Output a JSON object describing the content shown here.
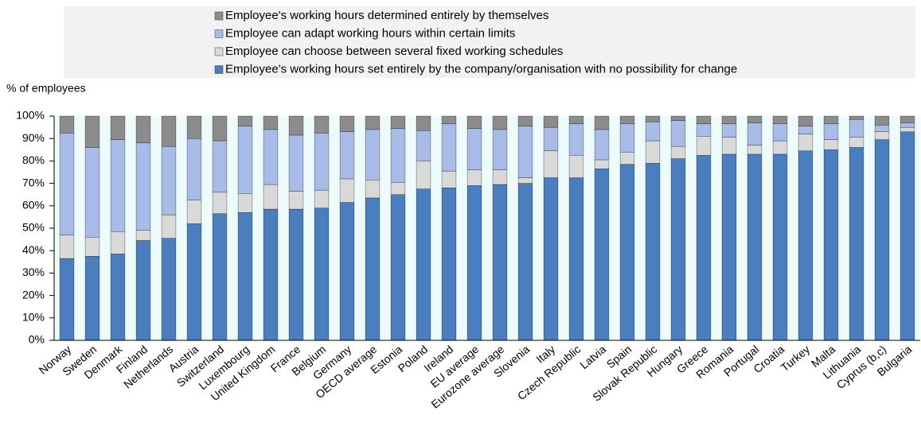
{
  "chart_data": {
    "type": "stacked_bar",
    "y_label": "% of employees",
    "categories": [
      "Norway",
      "Sweden",
      "Denmark",
      "Finland",
      "Netherlands",
      "Austria",
      "Switzerland",
      "Luxembourg",
      "United Kingdom",
      "France",
      "Belgium",
      "Germany",
      "OECD average",
      "Estonia",
      "Poland",
      "Ireland",
      "EU average",
      "Eurozone average",
      "Slovenia",
      "Italy",
      "Czech Republic",
      "Latvia",
      "Spain",
      "Slovak Republic",
      "Hungary",
      "Greece",
      "Romania",
      "Portugal",
      "Croatia",
      "Turkey",
      "Malta",
      "Lithuania",
      "Cyprus (b,c)",
      "Bulgaria"
    ],
    "series": [
      {
        "name": "Employee's working hours set entirely by the company/organisation with no possibility for change",
        "color": "#4a7ebf",
        "values": [
          36.5,
          37.5,
          38.5,
          44.5,
          45.5,
          52,
          56.5,
          57,
          58.5,
          58.5,
          59,
          61.5,
          63.5,
          65,
          67.5,
          68,
          69,
          69.5,
          70,
          72.5,
          72.5,
          76.5,
          78.5,
          79,
          81,
          82.5,
          83,
          83,
          83,
          84.5,
          85,
          86,
          89.5,
          93
        ]
      },
      {
        "name": "Employee can choose between several fixed working schedules",
        "color": "#d9d9d9",
        "values": [
          10.5,
          8.5,
          10,
          4.5,
          10.5,
          10.5,
          9.5,
          8.5,
          11,
          8,
          8,
          10.5,
          8,
          5.5,
          12.5,
          7.5,
          7,
          6.5,
          2.5,
          12,
          10,
          4,
          5.5,
          10,
          5.5,
          8.5,
          7.5,
          4,
          6,
          7.5,
          4.5,
          4.5,
          3.5,
          2
        ]
      },
      {
        "name": "Employee can adapt working hours within certain limits",
        "color": "#a9bce8",
        "values": [
          45.5,
          40,
          41,
          39,
          30.5,
          27.5,
          23,
          30,
          24.5,
          25,
          25.5,
          21,
          22.5,
          24,
          13.5,
          21,
          18.5,
          18,
          23,
          10.5,
          14,
          13.5,
          12.5,
          8.5,
          11.5,
          5.5,
          6,
          10,
          7.5,
          3.5,
          7,
          8,
          3,
          2
        ]
      },
      {
        "name": "Employee's working hours determined entirely by themselves",
        "color": "#8c8c8c",
        "values": [
          7.5,
          14,
          10.5,
          12,
          13.5,
          10,
          11,
          4.5,
          6,
          8.5,
          7.5,
          7,
          6,
          5.5,
          6.5,
          3.5,
          5.5,
          6,
          4.5,
          5,
          3.5,
          6,
          3.5,
          2.5,
          2,
          3.5,
          3.5,
          3,
          3.5,
          4.5,
          3.5,
          1.5,
          4,
          3
        ]
      }
    ],
    "ylim": [
      0,
      100
    ],
    "yticks": [
      {
        "value": 0,
        "label": "0%"
      },
      {
        "value": 10,
        "label": "10%"
      },
      {
        "value": 20,
        "label": "20%"
      },
      {
        "value": 30,
        "label": "30%"
      },
      {
        "value": 40,
        "label": "40%"
      },
      {
        "value": 50,
        "label": "50%"
      },
      {
        "value": 60,
        "label": "60%"
      },
      {
        "value": 70,
        "label": "70%"
      },
      {
        "value": 80,
        "label": "80%"
      },
      {
        "value": 90,
        "label": "90%"
      },
      {
        "value": 100,
        "label": "100%"
      }
    ],
    "grid": false,
    "legend": "top"
  }
}
